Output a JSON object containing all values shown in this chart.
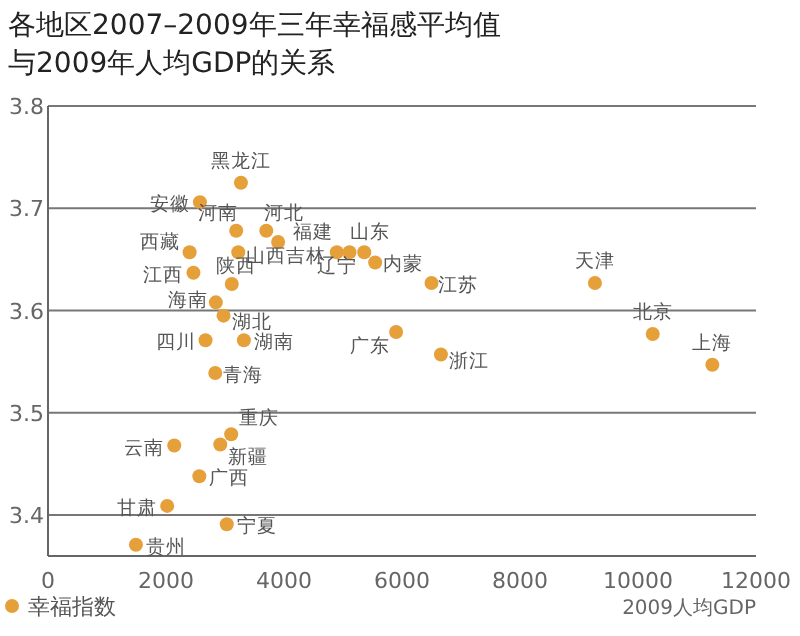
{
  "chart_data": {
    "type": "scatter",
    "title": "各地区2007–2009年三年幸福感平均值与2009年人均GDP的关系",
    "xlabel": "2009人均GDP",
    "series": [
      {
        "name": "幸福指数",
        "color": "#e5a03a",
        "x": [
          3270,
          2575,
          3190,
          3700,
          2400,
          3900,
          3225,
          2465,
          3115,
          2845,
          2975,
          2670,
          3320,
          2835,
          4895,
          5110,
          5360,
          5545,
          6500,
          5900,
          6660,
          9270,
          10250,
          11260,
          3105,
          2920,
          2140,
          2565,
          2020,
          3030,
          1490
        ],
        "values": [
          3.725,
          3.706,
          3.678,
          3.678,
          3.657,
          3.667,
          3.657,
          3.637,
          3.626,
          3.608,
          3.595,
          3.571,
          3.571,
          3.539,
          3.657,
          3.657,
          3.657,
          3.647,
          3.627,
          3.579,
          3.557,
          3.627,
          3.577,
          3.547,
          3.479,
          3.469,
          3.468,
          3.438,
          3.409,
          3.391,
          3.371
        ]
      }
    ],
    "annotations": [
      {
        "text": "黑龙江",
        "x": 3270,
        "y": 3.725
      },
      {
        "text": "安徽",
        "x": 2575,
        "y": 3.706
      },
      {
        "text": "河南",
        "x": 3190,
        "y": 3.678
      },
      {
        "text": "河北",
        "x": 3700,
        "y": 3.678
      },
      {
        "text": "西藏",
        "x": 2400,
        "y": 3.657
      },
      {
        "text": "吉林",
        "x": 3900,
        "y": 3.667
      },
      {
        "text": "山西",
        "x": 3225,
        "y": 3.657
      },
      {
        "text": "江西",
        "x": 2465,
        "y": 3.637
      },
      {
        "text": "陕西",
        "x": 3115,
        "y": 3.626
      },
      {
        "text": "海南",
        "x": 2845,
        "y": 3.608
      },
      {
        "text": "湖北",
        "x": 2975,
        "y": 3.595
      },
      {
        "text": "四川",
        "x": 2670,
        "y": 3.571
      },
      {
        "text": "湖南",
        "x": 3320,
        "y": 3.571
      },
      {
        "text": "青海",
        "x": 2835,
        "y": 3.539
      },
      {
        "text": "福建",
        "x": 4895,
        "y": 3.657
      },
      {
        "text": "辽宁",
        "x": 5110,
        "y": 3.657
      },
      {
        "text": "山东",
        "x": 5360,
        "y": 3.657
      },
      {
        "text": "内蒙",
        "x": 5545,
        "y": 3.647
      },
      {
        "text": "江苏",
        "x": 6500,
        "y": 3.627
      },
      {
        "text": "广东",
        "x": 5900,
        "y": 3.579
      },
      {
        "text": "浙江",
        "x": 6660,
        "y": 3.557
      },
      {
        "text": "天津",
        "x": 9270,
        "y": 3.627
      },
      {
        "text": "北京",
        "x": 10250,
        "y": 3.577
      },
      {
        "text": "上海",
        "x": 11260,
        "y": 3.547
      },
      {
        "text": "重庆",
        "x": 3105,
        "y": 3.479
      },
      {
        "text": "新疆",
        "x": 2920,
        "y": 3.469
      },
      {
        "text": "云南",
        "x": 2140,
        "y": 3.468
      },
      {
        "text": "广西",
        "x": 2565,
        "y": 3.438
      },
      {
        "text": "甘肃",
        "x": 2020,
        "y": 3.409
      },
      {
        "text": "宁夏",
        "x": 3030,
        "y": 3.391
      },
      {
        "text": "贵州",
        "x": 1490,
        "y": 3.371
      }
    ],
    "xlim": [
      0,
      12000
    ],
    "xticks": [
      0,
      2000,
      4000,
      6000,
      8000,
      10000,
      12000
    ],
    "ylim": [
      3.36,
      3.8
    ],
    "yticks": [
      3.4,
      3.5,
      3.6,
      3.7,
      3.8
    ],
    "grid": "y",
    "legend": "bottom left",
    "marker": "circle"
  }
}
